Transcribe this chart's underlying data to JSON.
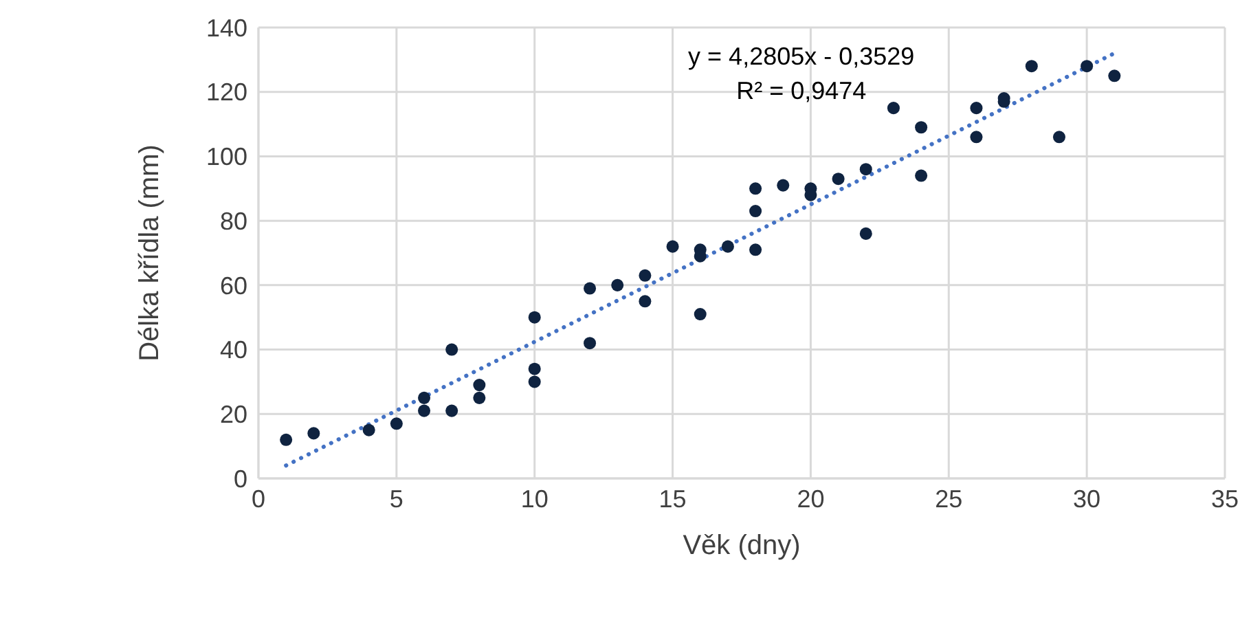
{
  "chart_data": {
    "type": "scatter",
    "xlabel": "Věk (dny)",
    "ylabel": "Délka křídla (mm)",
    "xlim": [
      0,
      35
    ],
    "xticks": [
      0,
      5,
      10,
      15,
      20,
      25,
      30,
      35
    ],
    "ylim": [
      0,
      140
    ],
    "yticks": [
      0,
      20,
      40,
      60,
      80,
      100,
      120,
      140
    ],
    "grid": true,
    "marker": "circle",
    "annotations": [
      "y = 4,2805x - 0,3529",
      "R² = 0,9474"
    ],
    "series": [
      {
        "color": "#0f2340",
        "x": [
          1,
          2,
          4,
          5,
          6,
          6,
          7,
          7,
          8,
          8,
          10,
          10,
          10,
          12,
          12,
          13,
          14,
          14,
          15,
          16,
          16,
          16,
          17,
          18,
          18,
          18,
          19,
          20,
          20,
          21,
          22,
          22,
          23,
          24,
          24,
          26,
          26,
          27,
          27,
          28,
          29,
          30,
          31
        ],
        "values": [
          12,
          14,
          15,
          17,
          25,
          21,
          40,
          21,
          29,
          25,
          50,
          34,
          30,
          59,
          42,
          60,
          63,
          55,
          72,
          71,
          69,
          51,
          72,
          90,
          83,
          71,
          91,
          90,
          88,
          93,
          96,
          76,
          115,
          109,
          94,
          115,
          106,
          118,
          117,
          128,
          106,
          128,
          125
        ]
      },
      {
        "type": "line",
        "color": "#4472c4",
        "line_style": "dotted",
        "marker": "none",
        "x": [
          1,
          31
        ],
        "values": [
          4,
          132
        ]
      }
    ]
  }
}
